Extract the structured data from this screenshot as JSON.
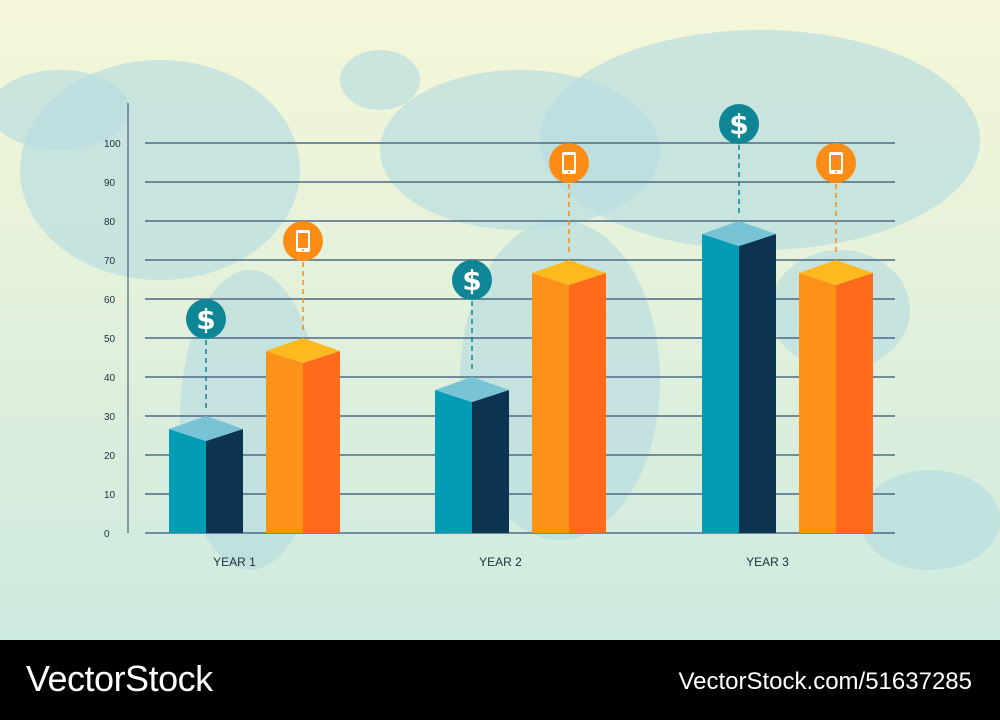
{
  "chart_data": {
    "type": "bar",
    "style": "3d-isometric",
    "categories": [
      "YEAR 1",
      "YEAR 2",
      "YEAR 3"
    ],
    "series": [
      {
        "icon": "dollar-icon",
        "values": [
          30,
          40,
          80
        ],
        "colors": {
          "front": "#029db4",
          "side": "#0c3350",
          "top": "#78c4d6",
          "marker": "#0e8696"
        }
      },
      {
        "icon": "tablet-icon",
        "values": [
          50,
          70,
          70
        ],
        "colors": {
          "front": "#fd9219",
          "side": "#ff6b1b",
          "top": "#fdb91e",
          "marker": "#fc8c14"
        }
      }
    ],
    "yticks": [
      0,
      10,
      20,
      30,
      40,
      50,
      60,
      70,
      80,
      90,
      100
    ],
    "ylim": [
      0,
      100
    ],
    "grid": true,
    "title": "",
    "xlabel": "",
    "ylabel": ""
  },
  "background": {
    "top": "#f6f7d8",
    "bottom": "#cdeadf",
    "map": "#b9dde0"
  },
  "watermark": {
    "logo": "VectorStock",
    "url": "VectorStock.com/51637285"
  }
}
